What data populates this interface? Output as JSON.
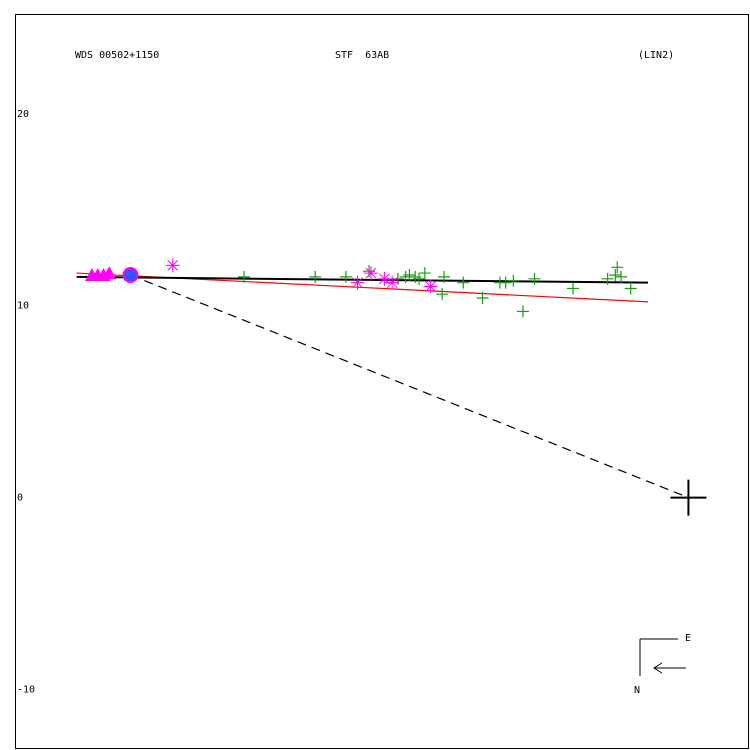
{
  "chart_data": {
    "type": "scatter",
    "header": [
      "WDS 00502+1150",
      "STF  63AB",
      "(LIN2)"
    ],
    "compass": [
      "E",
      "N"
    ],
    "xlim": [
      -35,
      3.2
    ],
    "ylim": [
      -13.1,
      25.2
    ],
    "yticks": [
      20,
      10,
      0,
      -10
    ],
    "grid": false,
    "series": [
      {
        "color": "#1a9a1a",
        "marker": "plus",
        "x": [
          -23.1,
          -19.4,
          -17.8,
          -16.6,
          -15.1,
          -14.7,
          -14.5,
          -14.2,
          -14.0,
          -13.7,
          -12.8,
          -12.7,
          -11.7,
          -10.7,
          -9.8,
          -9.5,
          -9.1,
          -8.6,
          -8.0,
          -6.0,
          -4.2,
          -3.8,
          -3.7,
          -3.5,
          -3.0
        ],
        "values": [
          11.5,
          11.5,
          11.5,
          11.8,
          11.4,
          11.5,
          11.6,
          11.5,
          11.4,
          11.7,
          10.6,
          11.5,
          11.2,
          10.4,
          11.2,
          11.2,
          11.3,
          9.7,
          11.4,
          10.9,
          11.4,
          11.6,
          12.0,
          11.5,
          10.9
        ]
      },
      {
        "color": "#ff00ff",
        "marker": "asterisk",
        "x": [
          -26.8,
          -17.2,
          -16.5,
          -15.8,
          -15.4,
          -13.4
        ],
        "values": [
          12.1,
          11.2,
          11.7,
          11.4,
          11.2,
          11.0
        ]
      },
      {
        "color": "#ff00ff",
        "marker": "triangle",
        "x": [
          -31.0,
          -30.7,
          -30.4,
          -30.1
        ],
        "values": [
          11.6,
          11.6,
          11.6,
          11.7
        ]
      },
      {
        "color": "#3355ff",
        "marker": "circle",
        "x": [
          -29.0
        ],
        "values": [
          11.6
        ]
      },
      {
        "color": "#000000",
        "marker": "bigplus",
        "x": [
          0
        ],
        "values": [
          0
        ]
      }
    ],
    "lines": [
      {
        "color": "#ff0000",
        "dash": false,
        "x": [
          -31.8,
          -2.1
        ],
        "values": [
          11.7,
          10.2
        ]
      },
      {
        "color": "#000000",
        "dash": false,
        "x": [
          -31.8,
          -2.1
        ],
        "values": [
          11.5,
          11.2
        ]
      },
      {
        "color": "#000000",
        "dash": true,
        "x": [
          -29.0,
          0
        ],
        "values": [
          11.6,
          0
        ]
      }
    ]
  }
}
